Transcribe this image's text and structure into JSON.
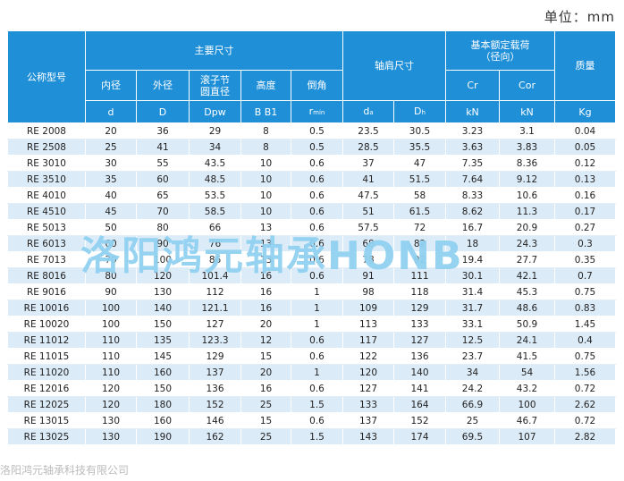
{
  "unit_label": "单位：mm",
  "header": {
    "model": "公称型号",
    "main_dims": "主要尺寸",
    "shoulder": "轴肩尺寸",
    "load_rating_line1": "基本额定载荷",
    "load_rating_line2": "（径向）",
    "mass": "质量",
    "inner_dia": "内径",
    "outer_dia": "外径",
    "roller_pitch_line1": "滚子节",
    "roller_pitch_line2": "圆直径",
    "height": "高度",
    "chamfer": "倒角",
    "cr": "Cr",
    "cor": "Cor",
    "sym_d": "d",
    "sym_D": "D",
    "sym_dpw": "Dpw",
    "sym_b": "B  B1",
    "sym_r": "r",
    "sym_r_sub": "min",
    "sym_da": "d",
    "sym_da_sub": "a",
    "sym_dh": "D",
    "sym_dh_sub": "h",
    "unit_kn1": "kN",
    "unit_kn2": "kN",
    "unit_kg": "Kg"
  },
  "rows": [
    [
      "RE 2008",
      "20",
      "36",
      "29",
      "8",
      "0.5",
      "23.5",
      "30.5",
      "3.23",
      "3.1",
      "0.04"
    ],
    [
      "RE 2508",
      "25",
      "41",
      "34",
      "8",
      "0.5",
      "28.5",
      "35.5",
      "3.63",
      "3.83",
      "0.05"
    ],
    [
      "RE 3010",
      "30",
      "55",
      "43.5",
      "10",
      "0.6",
      "37",
      "47",
      "7.35",
      "8.36",
      "0.12"
    ],
    [
      "RE 3510",
      "35",
      "60",
      "48.5",
      "10",
      "0.6",
      "41",
      "51.5",
      "7.64",
      "9.12",
      "0.13"
    ],
    [
      "RE 4010",
      "40",
      "65",
      "53.5",
      "10",
      "0.6",
      "47.5",
      "58",
      "8.33",
      "10.6",
      "0.16"
    ],
    [
      "RE 4510",
      "45",
      "70",
      "58.5",
      "10",
      "0.6",
      "51",
      "61.5",
      "8.62",
      "11.3",
      "0.17"
    ],
    [
      "RE 5013",
      "50",
      "80",
      "66",
      "13",
      "0.6",
      "57.5",
      "72",
      "16.7",
      "20.9",
      "0.27"
    ],
    [
      "RE 6013",
      "60",
      "90",
      "76",
      "13",
      "0.6",
      "68",
      "82",
      "18",
      "24.3",
      "0.3"
    ],
    [
      "RE 7013",
      "70",
      "100",
      "86",
      "13",
      "0.6",
      "78",
      "92",
      "19.4",
      "27.7",
      "0.35"
    ],
    [
      "RE 8016",
      "80",
      "120",
      "101.4",
      "16",
      "0.6",
      "91",
      "111",
      "30.1",
      "42.1",
      "0.7"
    ],
    [
      "RE 9016",
      "90",
      "130",
      "112",
      "16",
      "1",
      "98",
      "118",
      "31.4",
      "45.3",
      "0.75"
    ],
    [
      "RE 10016",
      "100",
      "140",
      "121.1",
      "16",
      "1",
      "109",
      "129",
      "31.7",
      "48.6",
      "0.83"
    ],
    [
      "RE 10020",
      "100",
      "150",
      "127",
      "20",
      "1",
      "113",
      "133",
      "33.1",
      "50.9",
      "1.45"
    ],
    [
      "RE 11012",
      "110",
      "135",
      "123.3",
      "12",
      "0.6",
      "117",
      "127",
      "12.5",
      "24.1",
      "0.4"
    ],
    [
      "RE 11015",
      "110",
      "145",
      "129",
      "15",
      "0.6",
      "122",
      "136",
      "23.7",
      "41.5",
      "0.75"
    ],
    [
      "RE 11020",
      "110",
      "160",
      "137",
      "20",
      "1",
      "120",
      "140",
      "34",
      "54",
      "1.56"
    ],
    [
      "RE 12016",
      "120",
      "150",
      "136",
      "16",
      "0.6",
      "127",
      "141",
      "24.2",
      "43.2",
      "0.72"
    ],
    [
      "RE 12025",
      "120",
      "180",
      "152",
      "25",
      "1.5",
      "133",
      "164",
      "66.9",
      "100",
      "2.62"
    ],
    [
      "RE 13015",
      "130",
      "160",
      "146",
      "15",
      "0.6",
      "137",
      "152",
      "25",
      "46.7",
      "0.72"
    ],
    [
      "RE 13025",
      "130",
      "190",
      "162",
      "25",
      "1.5",
      "143",
      "174",
      "69.5",
      "107",
      "2.82"
    ]
  ],
  "watermark": "洛阳鸿元轴承HONB",
  "footer_watermark": "洛阳鸿元轴承科技有限公司",
  "colors": {
    "header_bg": "#1f8fd8",
    "row_alt_bg": "#dcebf8",
    "watermark": "#40afe6"
  }
}
